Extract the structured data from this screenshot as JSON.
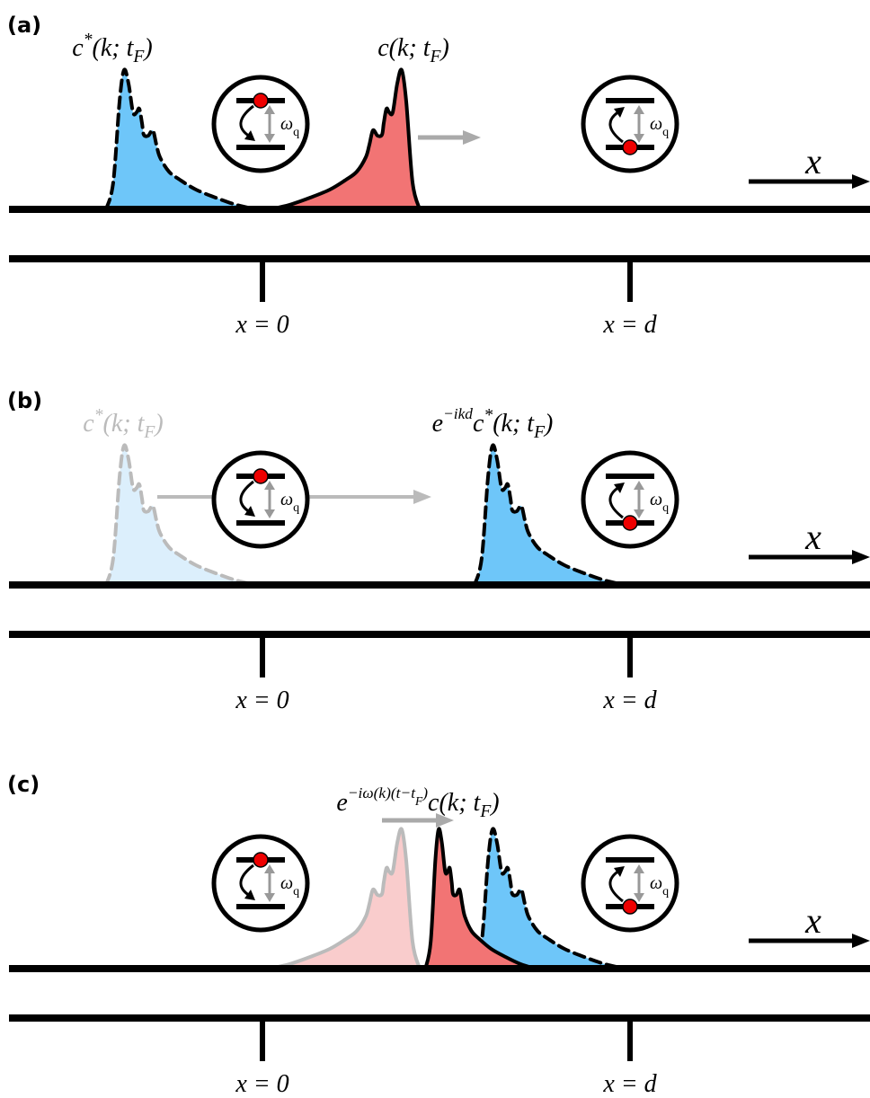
{
  "panels": [
    {
      "label": "(a)",
      "axis_label": "x",
      "markers": [
        "x = 0",
        "x = d"
      ],
      "atoms": [
        {
          "main": "ω",
          "sub": "q"
        },
        {
          "main": "ω",
          "sub": "q"
        }
      ],
      "pulse_labels": [
        {
          "main": "c",
          "sup": "*",
          "args": "(k; t",
          "sub": "F",
          "close": ")"
        },
        {
          "main": "c",
          "args": "(k; t",
          "sub": "F",
          "close": ")"
        }
      ]
    },
    {
      "label": "(b)",
      "axis_label": "x",
      "markers": [
        "x = 0",
        "x = d"
      ],
      "atoms": [
        {
          "main": "ω",
          "sub": "q"
        },
        {
          "main": "ω",
          "sub": "q"
        }
      ],
      "pulse_labels": [
        {
          "main": "c",
          "sup": "*",
          "args": "(k; t",
          "sub": "F",
          "close": ")"
        },
        {
          "e": "e",
          "exp": "−ikd",
          "main": "c",
          "sup": "*",
          "args": "(k; t",
          "sub": "F",
          "close": ")"
        }
      ]
    },
    {
      "label": "(c)",
      "axis_label": "x",
      "markers": [
        "x = 0",
        "x = d"
      ],
      "atoms": [
        {
          "main": "ω",
          "sub": "q"
        },
        {
          "main": "ω",
          "sub": "q"
        }
      ],
      "pulse_labels": [
        {
          "e": "e",
          "exp": "−iω(k)(t−t",
          "exp_sub": "F",
          "exp_close": ")",
          "main": "c",
          "args": "(k; t",
          "sub": "F",
          "close": ")"
        }
      ]
    }
  ]
}
